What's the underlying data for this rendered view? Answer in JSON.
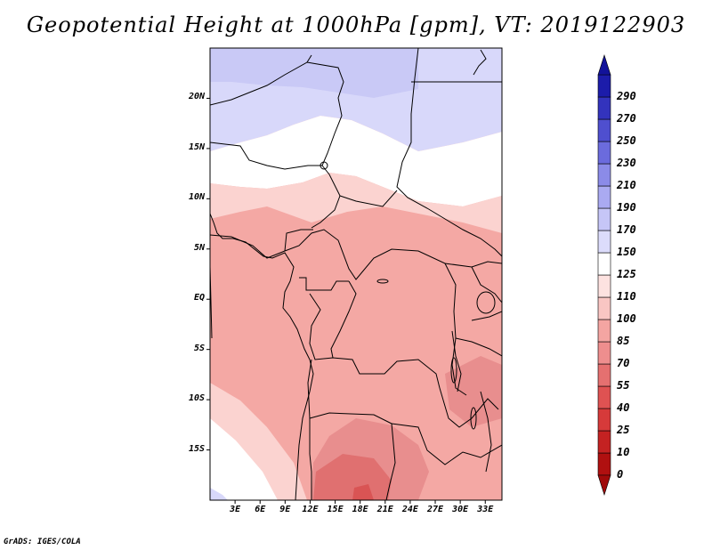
{
  "title": "Geopotential Height at 1000hPa [gpm], VT: 2019122903",
  "credit": "GrADS: IGES/COLA",
  "map": {
    "projection": "latlon",
    "lon_range": [
      0,
      35
    ],
    "lat_range": [
      -20,
      25
    ],
    "lat_ticks": [
      {
        "value": 20,
        "label": "20N"
      },
      {
        "value": 15,
        "label": "15N"
      },
      {
        "value": 10,
        "label": "10N"
      },
      {
        "value": 5,
        "label": "5N"
      },
      {
        "value": 0,
        "label": "EQ"
      },
      {
        "value": -5,
        "label": "5S"
      },
      {
        "value": -10,
        "label": "10S"
      },
      {
        "value": -15,
        "label": "15S"
      }
    ],
    "lon_ticks": [
      {
        "value": 3,
        "label": "3E"
      },
      {
        "value": 6,
        "label": "6E"
      },
      {
        "value": 9,
        "label": "9E"
      },
      {
        "value": 12,
        "label": "12E"
      },
      {
        "value": 15,
        "label": "15E"
      },
      {
        "value": 18,
        "label": "18E"
      },
      {
        "value": 21,
        "label": "21E"
      },
      {
        "value": 24,
        "label": "24E"
      },
      {
        "value": 27,
        "label": "27E"
      },
      {
        "value": 30,
        "label": "30E"
      },
      {
        "value": 33,
        "label": "33E"
      }
    ]
  },
  "colorbar": {
    "levels": [
      {
        "label": "0",
        "color": "#b01010"
      },
      {
        "label": "10",
        "color": "#c42222"
      },
      {
        "label": "25",
        "color": "#d63a3a"
      },
      {
        "label": "40",
        "color": "#df5252"
      },
      {
        "label": "55",
        "color": "#e57070"
      },
      {
        "label": "70",
        "color": "#ee8e8e"
      },
      {
        "label": "85",
        "color": "#f4a5a2"
      },
      {
        "label": "100",
        "color": "#f9c6c3"
      },
      {
        "label": "110",
        "color": "#fde2e0"
      },
      {
        "label": "125",
        "color": "#ffffff"
      },
      {
        "label": "150",
        "color": "#dcdcfb"
      },
      {
        "label": "170",
        "color": "#c6c6f7"
      },
      {
        "label": "190",
        "color": "#aaaaf1"
      },
      {
        "label": "210",
        "color": "#8b8be8"
      },
      {
        "label": "230",
        "color": "#6b6bdd"
      },
      {
        "label": "250",
        "color": "#4f4fcf"
      },
      {
        "label": "270",
        "color": "#3333bd"
      },
      {
        "label": "290",
        "color": "#1c1caa"
      }
    ],
    "low_extend_color": "#a00a0a",
    "high_extend_color": "#12129a"
  },
  "fields": {
    "pale_blue": "#d8d8fa",
    "light_blue": "#c9c9f6",
    "white": "#ffffff",
    "pink": "#fbd3d0",
    "salmon": "#f4a8a4",
    "rose": "#e88e8e",
    "red": "#e07070",
    "deep_red": "#d95454",
    "coast_color": "#000000"
  }
}
